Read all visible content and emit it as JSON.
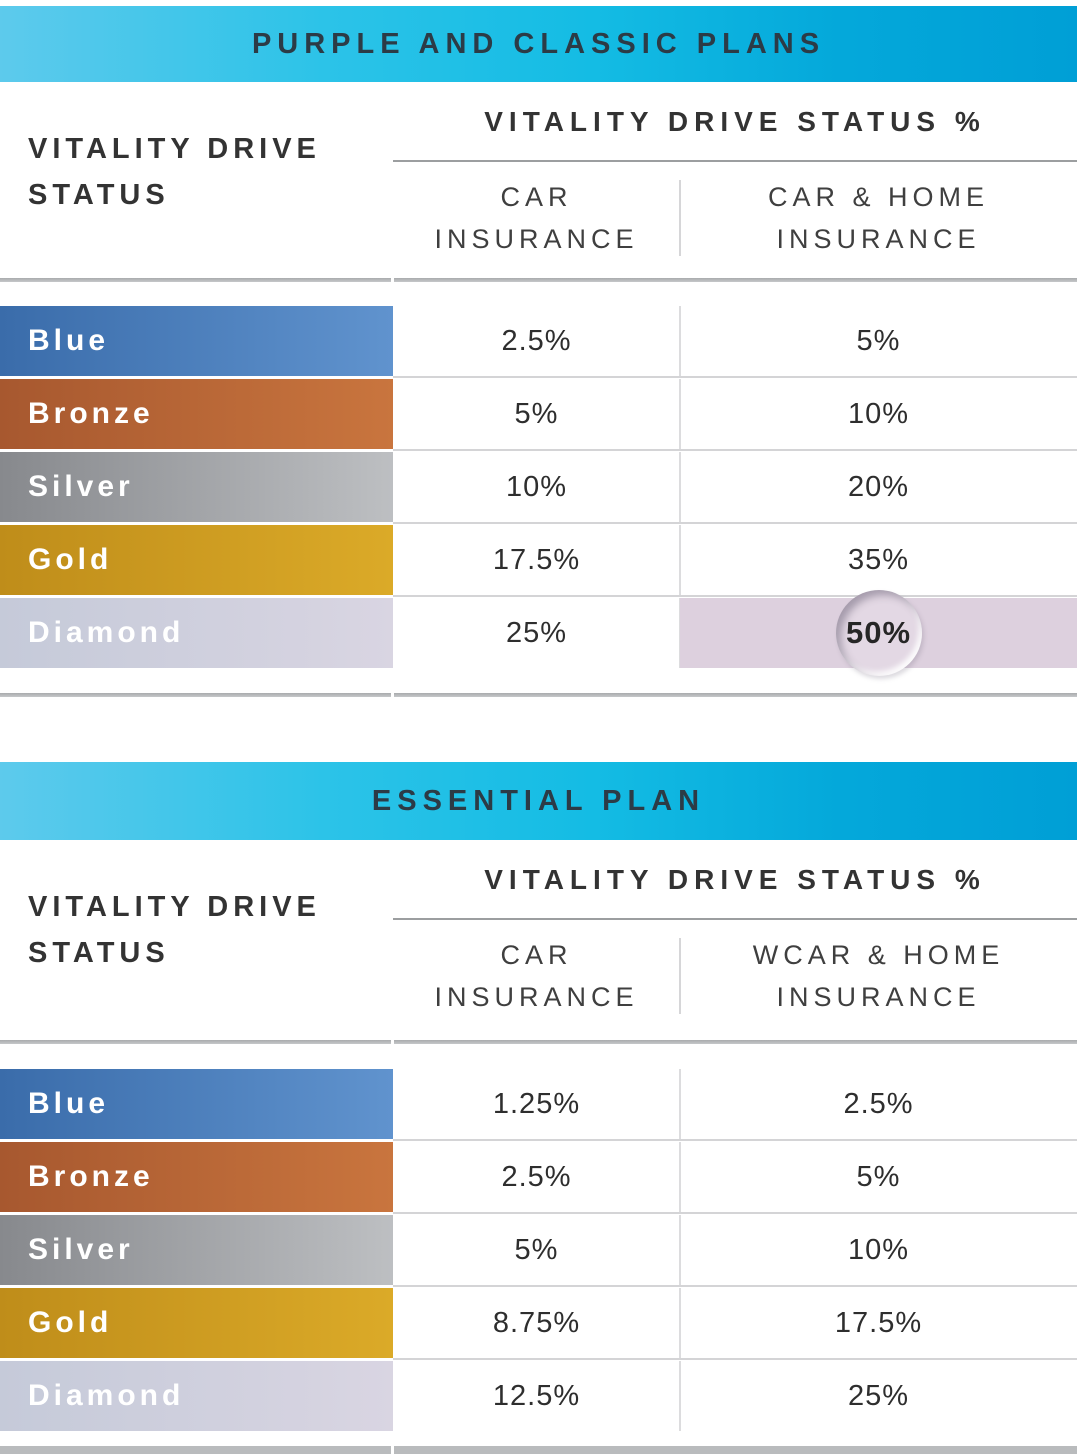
{
  "colors": {
    "header_bar_gradient": [
      "#5dcaec",
      "#14bce4",
      "#009fd6"
    ],
    "header_bar_text": "#2c3b46",
    "divider_gray": "#b0b2b4",
    "tier_colors": {
      "Blue": [
        "#3a6caa",
        "#6093ce"
      ],
      "Bronze": [
        "#a7582f",
        "#c9753e"
      ],
      "Silver": [
        "#87898d",
        "#bdbfc2"
      ],
      "Gold": [
        "#bf8d1a",
        "#dbaa28"
      ],
      "Diamond": [
        "#c5cad9",
        "#d9d5e2"
      ]
    },
    "highlight_cell": "#ddd0de",
    "highlight_bubble": "#e3d8e4"
  },
  "tables": [
    {
      "title": "PURPLE AND CLASSIC PLANS",
      "row_group_header": "VITALITY DRIVE\nSTATUS",
      "col_group_header": "VITALITY DRIVE STATUS %",
      "col1_header": "CAR\nINSURANCE",
      "col2_header": "CAR & HOME\nINSURANCE",
      "rows": [
        {
          "tier": "Blue",
          "car": "2.5%",
          "car_home": "5%"
        },
        {
          "tier": "Bronze",
          "car": "5%",
          "car_home": "10%"
        },
        {
          "tier": "Silver",
          "car": "10%",
          "car_home": "20%"
        },
        {
          "tier": "Gold",
          "car": "17.5%",
          "car_home": "35%"
        },
        {
          "tier": "Diamond",
          "car": "25%",
          "car_home": "50%"
        }
      ]
    },
    {
      "title": "ESSENTIAL PLAN",
      "row_group_header": "VITALITY DRIVE\nSTATUS",
      "col_group_header": "VITALITY DRIVE STATUS %",
      "col1_header": "CAR\nINSURANCE",
      "col2_header": "WCAR & HOME\nINSURANCE",
      "rows": [
        {
          "tier": "Blue",
          "car": "1.25%",
          "car_home": "2.5%"
        },
        {
          "tier": "Bronze",
          "car": "2.5%",
          "car_home": "5%"
        },
        {
          "tier": "Silver",
          "car": "5%",
          "car_home": "10%"
        },
        {
          "tier": "Gold",
          "car": "8.75%",
          "car_home": "17.5%"
        },
        {
          "tier": "Diamond",
          "car": "12.5%",
          "car_home": "25%"
        }
      ]
    }
  ]
}
